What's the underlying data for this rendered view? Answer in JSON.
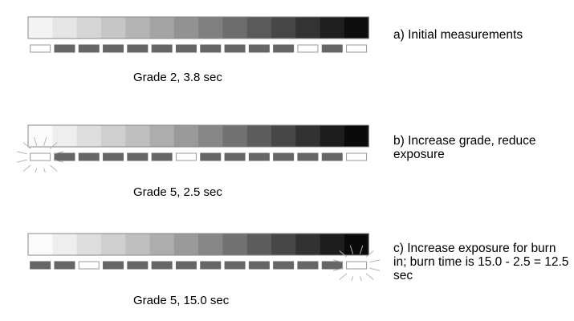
{
  "colors": {
    "indicator_on": "#666666",
    "indicator_off": "#ffffff",
    "strip_border": "#888888"
  },
  "panels": [
    {
      "id": "a",
      "label": "a) Initial measurements",
      "caption": "Grade 2, 3.8 sec",
      "step_tones": [
        "#f4f4f4",
        "#e6e6e6",
        "#d6d6d6",
        "#c6c6c6",
        "#b4b4b4",
        "#a3a3a3",
        "#929292",
        "#808080",
        "#6d6d6d",
        "#5a5a5a",
        "#474747",
        "#333333",
        "#1f1f1f",
        "#0d0d0d"
      ],
      "indicators": [
        "off",
        "on",
        "on",
        "on",
        "on",
        "on",
        "on",
        "on",
        "on",
        "on",
        "on",
        "off",
        "on",
        "off"
      ],
      "highlighted_indicator": -1
    },
    {
      "id": "b",
      "label": "b) Increase grade, reduce exposure",
      "caption": "Grade 5, 2.5 sec",
      "step_tones": [
        "#fbfbfb",
        "#eeeeee",
        "#dedede",
        "#cfcfcf",
        "#bfbfbf",
        "#adadad",
        "#9a9a9a",
        "#878787",
        "#727272",
        "#5d5d5d",
        "#474747",
        "#323232",
        "#1d1d1d",
        "#0a0a0a"
      ],
      "indicators": [
        "off",
        "on",
        "on",
        "on",
        "on",
        "on",
        "off",
        "on",
        "on",
        "on",
        "on",
        "on",
        "on",
        "off"
      ],
      "highlighted_indicator": 0
    },
    {
      "id": "c",
      "label": "c) Increase exposure for burn in; burn time is 15.0 - 2.5 = 12.5 sec",
      "caption": "Grade 5, 15.0 sec",
      "step_tones": [
        "#fbfbfb",
        "#eeeeee",
        "#dedede",
        "#cfcfcf",
        "#bfbfbf",
        "#adadad",
        "#9a9a9a",
        "#878787",
        "#727272",
        "#5d5d5d",
        "#474747",
        "#323232",
        "#1d1d1d",
        "#0a0a0a"
      ],
      "indicators": [
        "on",
        "on",
        "off",
        "on",
        "on",
        "on",
        "on",
        "on",
        "on",
        "on",
        "on",
        "on",
        "on",
        "off"
      ],
      "highlighted_indicator": 13
    }
  ]
}
